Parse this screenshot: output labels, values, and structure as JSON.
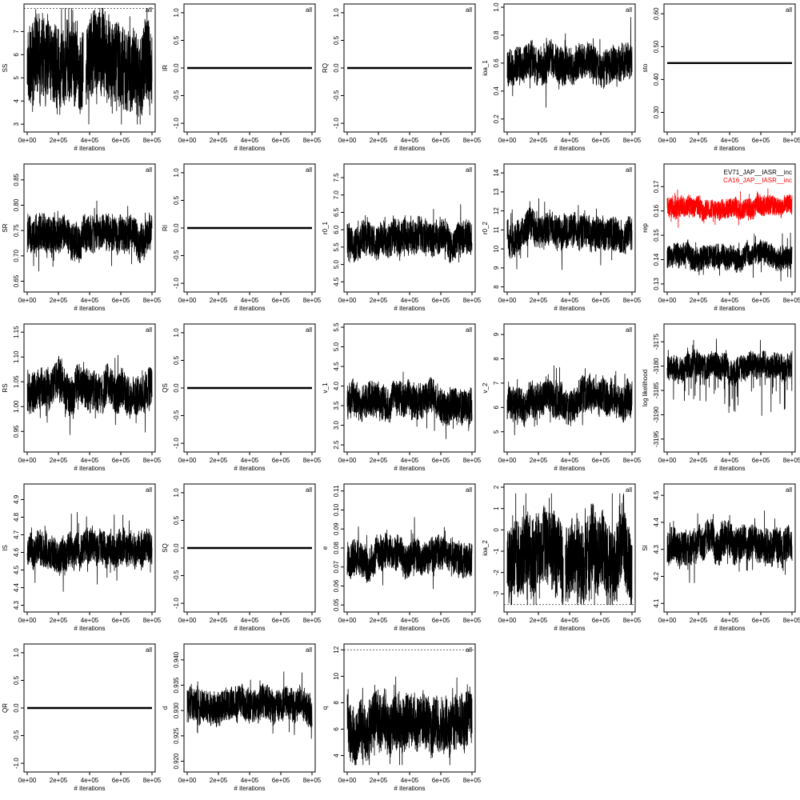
{
  "chart_data": [
    {
      "id": "SS",
      "type": "line",
      "xlabel": "# iterations",
      "ylabel": "SS",
      "tag": "all",
      "xlim": [
        0,
        800000
      ],
      "ylim": [
        2.8,
        8.05
      ],
      "yticks": [
        3,
        4,
        5,
        6,
        7
      ],
      "xticks": [
        0,
        200000,
        400000,
        600000,
        800000
      ],
      "xtick_labels": [
        "0e+00",
        "2e+05",
        "4e+05",
        "6e+05",
        "8e+05"
      ],
      "refline": 8,
      "series": [
        {
          "color": "#000000",
          "level": 5.6,
          "spread": 2.2,
          "band": [
            3.0,
            8.0
          ],
          "seed": 11,
          "gaps": [
            [
              0.45,
              0.47
            ]
          ]
        }
      ]
    },
    {
      "id": "IR",
      "type": "line",
      "xlabel": "# iterations",
      "ylabel": "IR",
      "tag": "all",
      "xlim": [
        0,
        800000
      ],
      "ylim": [
        -1.1,
        1.1
      ],
      "yticks": [
        -1,
        -0.5,
        0,
        0.5,
        1
      ],
      "yticks_text": [
        "-1.0",
        "-0.5",
        "0.0",
        "0.5",
        "1.0"
      ],
      "xticks": [
        0,
        200000,
        400000,
        600000,
        800000
      ],
      "xtick_labels": [
        "0e+00",
        "2e+05",
        "4e+05",
        "6e+05",
        "8e+05"
      ],
      "constant": 0
    },
    {
      "id": "RQ",
      "type": "line",
      "xlabel": "# iterations",
      "ylabel": "RQ",
      "tag": "all",
      "xlim": [
        0,
        800000
      ],
      "ylim": [
        -1.1,
        1.1
      ],
      "yticks": [
        -1,
        -0.5,
        0,
        0.5,
        1
      ],
      "yticks_text": [
        "-1.0",
        "-0.5",
        "0.0",
        "0.5",
        "1.0"
      ],
      "xticks": [
        0,
        200000,
        400000,
        600000,
        800000
      ],
      "xtick_labels": [
        "0e+00",
        "2e+05",
        "4e+05",
        "6e+05",
        "8e+05"
      ],
      "constant": 0
    },
    {
      "id": "ioa_1",
      "type": "line",
      "xlabel": "# iterations",
      "ylabel": "ioa_1",
      "tag": "all",
      "xlim": [
        0,
        800000
      ],
      "ylim": [
        0.13,
        1.0
      ],
      "yticks": [
        0.2,
        0.4,
        0.6,
        0.8,
        1.0
      ],
      "yticks_text": [
        "0.2",
        "0.4",
        "0.6",
        "0.8",
        "1.0"
      ],
      "xticks": [
        0,
        200000,
        400000,
        600000,
        800000
      ],
      "xtick_labels": [
        "0e+00",
        "2e+05",
        "4e+05",
        "6e+05",
        "8e+05"
      ],
      "series": [
        {
          "color": "#000000",
          "level": 0.58,
          "spread": 0.16,
          "band": [
            0.15,
            0.97
          ],
          "seed": 21
        }
      ]
    },
    {
      "id": "sto",
      "type": "line",
      "xlabel": "# iterations",
      "ylabel": "sto",
      "tag": "all",
      "xlim": [
        0,
        800000
      ],
      "ylim": [
        0.25,
        0.62
      ],
      "yticks": [
        0.3,
        0.4,
        0.5,
        0.6
      ],
      "yticks_text": [
        "0.30",
        "0.40",
        "0.50",
        "0.60"
      ],
      "xticks": [
        0,
        200000,
        400000,
        600000,
        800000
      ],
      "xtick_labels": [
        "0e+00",
        "2e+05",
        "4e+05",
        "6e+05",
        "8e+05"
      ],
      "constant": 0.45
    },
    {
      "id": "SR",
      "type": "line",
      "xlabel": "# iterations",
      "ylabel": "SR",
      "tag": "all",
      "xlim": [
        0,
        800000
      ],
      "ylim": [
        0.635,
        0.875
      ],
      "yticks": [
        0.65,
        0.7,
        0.75,
        0.8,
        0.85
      ],
      "yticks_text": [
        "0.65",
        "0.70",
        "0.75",
        "0.80",
        "0.85"
      ],
      "xticks": [
        0,
        200000,
        400000,
        600000,
        800000
      ],
      "xtick_labels": [
        "0e+00",
        "2e+05",
        "4e+05",
        "6e+05",
        "8e+05"
      ],
      "series": [
        {
          "color": "#000000",
          "level": 0.74,
          "spread": 0.045,
          "band": [
            0.64,
            0.87
          ],
          "seed": 31
        }
      ]
    },
    {
      "id": "RI",
      "type": "line",
      "xlabel": "# iterations",
      "ylabel": "RI",
      "tag": "all",
      "xlim": [
        0,
        800000
      ],
      "ylim": [
        -1.1,
        1.1
      ],
      "yticks": [
        -1,
        -0.5,
        0,
        0.5,
        1
      ],
      "yticks_text": [
        "-1.0",
        "-0.5",
        "0.0",
        "0.5",
        "1.0"
      ],
      "xticks": [
        0,
        200000,
        400000,
        600000,
        800000
      ],
      "xtick_labels": [
        "0e+00",
        "2e+05",
        "4e+05",
        "6e+05",
        "8e+05"
      ],
      "constant": 0
    },
    {
      "id": "r0_1",
      "type": "line",
      "xlabel": "# iterations",
      "ylabel": "r0_1",
      "tag": "all",
      "xlim": [
        0,
        800000
      ],
      "ylim": [
        4.3,
        7.8
      ],
      "yticks": [
        4.5,
        5.0,
        5.5,
        6.0,
        6.5,
        7.0,
        7.5
      ],
      "yticks_text": [
        "4.5",
        "5.0",
        "5.5",
        "6.0",
        "6.5",
        "7.0",
        "7.5"
      ],
      "xticks": [
        0,
        200000,
        400000,
        600000,
        800000
      ],
      "xtick_labels": [
        "0e+00",
        "2e+05",
        "4e+05",
        "6e+05",
        "8e+05"
      ],
      "series": [
        {
          "color": "#000000",
          "level": 5.7,
          "spread": 0.6,
          "band": [
            4.4,
            7.7
          ],
          "seed": 41
        }
      ]
    },
    {
      "id": "r0_2",
      "type": "line",
      "xlabel": "# iterations",
      "ylabel": "r0_2",
      "tag": "all",
      "xlim": [
        0,
        800000
      ],
      "ylim": [
        7.9,
        14.3
      ],
      "yticks": [
        8,
        9,
        10,
        11,
        12,
        13,
        14
      ],
      "yticks_text": [
        "8",
        "9",
        "10",
        "11",
        "12",
        "13",
        "14"
      ],
      "xticks": [
        0,
        200000,
        400000,
        600000,
        800000
      ],
      "xtick_labels": [
        "0e+00",
        "2e+05",
        "4e+05",
        "6e+05",
        "8e+05"
      ],
      "series": [
        {
          "color": "#000000",
          "level": 10.8,
          "spread": 1.1,
          "band": [
            8.2,
            14.1
          ],
          "seed": 51
        }
      ]
    },
    {
      "id": "rep",
      "type": "line",
      "xlabel": "# iterations",
      "ylabel": "rep",
      "xlim": [
        0,
        800000
      ],
      "ylim": [
        0.128,
        0.178
      ],
      "yticks": [
        0.13,
        0.14,
        0.15,
        0.16,
        0.17
      ],
      "yticks_text": [
        "0.13",
        "0.14",
        "0.15",
        "0.16",
        "0.17"
      ],
      "xticks": [
        0,
        200000,
        400000,
        600000,
        800000
      ],
      "xtick_labels": [
        "0e+00",
        "2e+05",
        "4e+05",
        "6e+05",
        "8e+05"
      ],
      "legend": {
        "position": "top-right",
        "entries": [
          {
            "label": "EV71_JAP__IASR__inc",
            "color": "#000000"
          },
          {
            "label": "CA16_JAP__IASR__inc",
            "color": "#ff0000"
          }
        ]
      },
      "series": [
        {
          "name": "EV71_JAP__IASR__inc",
          "color": "#000000",
          "level": 0.141,
          "spread": 0.006,
          "band": [
            0.131,
            0.158
          ],
          "seed": 61
        },
        {
          "name": "CA16_JAP__IASR__inc",
          "color": "#ff0000",
          "level": 0.162,
          "spread": 0.005,
          "band": [
            0.152,
            0.174
          ],
          "seed": 62
        }
      ]
    },
    {
      "id": "RS",
      "type": "line",
      "xlabel": "# iterations",
      "ylabel": "RS",
      "tag": "all",
      "xlim": [
        0,
        800000
      ],
      "ylim": [
        0.915,
        1.16
      ],
      "yticks": [
        0.95,
        1.0,
        1.05,
        1.1,
        1.15
      ],
      "yticks_text": [
        "0.95",
        "1.00",
        "1.05",
        "1.10",
        "1.15"
      ],
      "xticks": [
        0,
        200000,
        400000,
        600000,
        800000
      ],
      "xtick_labels": [
        "0e+00",
        "2e+05",
        "4e+05",
        "6e+05",
        "8e+05"
      ],
      "series": [
        {
          "color": "#000000",
          "level": 1.03,
          "spread": 0.05,
          "band": [
            0.92,
            1.155
          ],
          "seed": 71
        }
      ]
    },
    {
      "id": "QS",
      "type": "line",
      "xlabel": "# iterations",
      "ylabel": "QS",
      "tag": "all",
      "xlim": [
        0,
        800000
      ],
      "ylim": [
        -1.1,
        1.1
      ],
      "yticks": [
        -1,
        -0.5,
        0,
        0.5,
        1
      ],
      "yticks_text": [
        "-1.0",
        "-0.5",
        "0.0",
        "0.5",
        "1.0"
      ],
      "xticks": [
        0,
        200000,
        400000,
        600000,
        800000
      ],
      "xtick_labels": [
        "0e+00",
        "2e+05",
        "4e+05",
        "6e+05",
        "8e+05"
      ],
      "constant": 0
    },
    {
      "id": "v_1",
      "type": "line",
      "xlabel": "# iterations",
      "ylabel": "v_1",
      "tag": "all",
      "xlim": [
        0,
        800000
      ],
      "ylim": [
        2.4,
        5.5
      ],
      "yticks": [
        2.5,
        3.0,
        3.5,
        4.0,
        4.5,
        5.0,
        5.5
      ],
      "yticks_text": [
        "2.5",
        "3.0",
        "3.5",
        "4.0",
        "4.5",
        "5.0",
        "5.5"
      ],
      "xticks": [
        0,
        200000,
        400000,
        600000,
        800000
      ],
      "xtick_labels": [
        "0e+00",
        "2e+05",
        "4e+05",
        "6e+05",
        "8e+05"
      ],
      "series": [
        {
          "color": "#000000",
          "level": 3.6,
          "spread": 0.55,
          "band": [
            2.6,
            5.4
          ],
          "seed": 81
        }
      ]
    },
    {
      "id": "v_2",
      "type": "line",
      "xlabel": "# iterations",
      "ylabel": "v_2",
      "tag": "all",
      "xlim": [
        0,
        800000
      ],
      "ylim": [
        4.3,
        9.3
      ],
      "yticks": [
        5,
        6,
        7,
        8,
        9
      ],
      "yticks_text": [
        "5",
        "6",
        "7",
        "8",
        "9"
      ],
      "xticks": [
        0,
        200000,
        400000,
        600000,
        800000
      ],
      "xtick_labels": [
        "0e+00",
        "2e+05",
        "4e+05",
        "6e+05",
        "8e+05"
      ],
      "series": [
        {
          "color": "#000000",
          "level": 6.3,
          "spread": 0.9,
          "band": [
            4.5,
            9.2
          ],
          "seed": 91
        }
      ]
    },
    {
      "id": "loglik",
      "type": "line",
      "xlabel": "# iterations",
      "ylabel": "log likelihood",
      "xlim": [
        0,
        800000
      ],
      "ylim": [
        -3197,
        -3172
      ],
      "yticks": [
        -3195,
        -3190,
        -3185,
        -3180,
        -3175
      ],
      "yticks_text": [
        "-3195",
        "-3190",
        "-3185",
        "-3180",
        "-3175"
      ],
      "xticks": [
        0,
        200000,
        400000,
        600000,
        800000
      ],
      "xtick_labels": [
        "0e+00",
        "2e+05",
        "4e+05",
        "6e+05",
        "8e+05"
      ],
      "series": [
        {
          "color": "#000000",
          "level": -3180,
          "spread": 3.2,
          "band": [
            -3196,
            -3173
          ],
          "seed": 101,
          "skew": "low"
        }
      ]
    },
    {
      "id": "IS",
      "type": "line",
      "xlabel": "# iterations",
      "ylabel": "IS",
      "tag": "all",
      "xlim": [
        0,
        800000
      ],
      "ylim": [
        4.28,
        4.97
      ],
      "yticks": [
        4.3,
        4.4,
        4.5,
        4.6,
        4.7,
        4.8,
        4.9
      ],
      "yticks_text": [
        "4.3",
        "4.4",
        "4.5",
        "4.6",
        "4.7",
        "4.8",
        "4.9"
      ],
      "xticks": [
        0,
        200000,
        400000,
        600000,
        800000
      ],
      "xtick_labels": [
        "0e+00",
        "2e+05",
        "4e+05",
        "6e+05",
        "8e+05"
      ],
      "series": [
        {
          "color": "#000000",
          "level": 4.62,
          "spread": 0.12,
          "band": [
            4.3,
            4.95
          ],
          "seed": 111
        }
      ]
    },
    {
      "id": "SQ",
      "type": "line",
      "xlabel": "# iterations",
      "ylabel": "SQ",
      "tag": "all",
      "xlim": [
        0,
        800000
      ],
      "ylim": [
        -1.1,
        1.1
      ],
      "yticks": [
        -1,
        -0.5,
        0,
        0.5,
        1
      ],
      "yticks_text": [
        "-1.0",
        "-0.5",
        "0.0",
        "0.5",
        "1.0"
      ],
      "xticks": [
        0,
        200000,
        400000,
        600000,
        800000
      ],
      "xtick_labels": [
        "0e+00",
        "2e+05",
        "4e+05",
        "6e+05",
        "8e+05"
      ],
      "constant": 0
    },
    {
      "id": "e",
      "type": "line",
      "xlabel": "# iterations",
      "ylabel": "e",
      "tag": "all",
      "xlim": [
        0,
        800000
      ],
      "ylim": [
        0.048,
        0.112
      ],
      "yticks": [
        0.05,
        0.06,
        0.07,
        0.08,
        0.09,
        0.1,
        0.11
      ],
      "yticks_text": [
        "0.05",
        "0.06",
        "0.07",
        "0.08",
        "0.09",
        "0.10",
        "0.11"
      ],
      "xticks": [
        0,
        200000,
        400000,
        600000,
        800000
      ],
      "xtick_labels": [
        "0e+00",
        "2e+05",
        "4e+05",
        "6e+05",
        "8e+05"
      ],
      "series": [
        {
          "color": "#000000",
          "level": 0.075,
          "spread": 0.011,
          "band": [
            0.052,
            0.11
          ],
          "seed": 121
        }
      ]
    },
    {
      "id": "ioa_2",
      "type": "line",
      "xlabel": "# iterations",
      "ylabel": "ioa_2",
      "tag": "all",
      "xlim": [
        0,
        800000
      ],
      "ylim": [
        -3.7,
        2.0
      ],
      "yticks": [
        -3,
        -2,
        -1,
        0,
        1,
        2
      ],
      "yticks_text": [
        "-3",
        "-2",
        "-1",
        "0",
        "1",
        "2"
      ],
      "xticks": [
        0,
        200000,
        400000,
        600000,
        800000
      ],
      "xtick_labels": [
        "0e+00",
        "2e+05",
        "4e+05",
        "6e+05",
        "8e+05"
      ],
      "refline": -3.5,
      "series": [
        {
          "color": "#000000",
          "level": -1.2,
          "spread": 2.3,
          "band": [
            -3.5,
            1.7
          ],
          "seed": 131,
          "gaps": [
            [
              0.45,
              0.465
            ]
          ]
        }
      ]
    },
    {
      "id": "SI",
      "type": "line",
      "xlabel": "# iterations",
      "ylabel": "SI",
      "tag": "all",
      "xlim": [
        0,
        800000
      ],
      "ylim": [
        4.08,
        4.53
      ],
      "yticks": [
        4.1,
        4.2,
        4.3,
        4.4,
        4.5
      ],
      "yticks_text": [
        "4.1",
        "4.2",
        "4.3",
        "4.4",
        "4.5"
      ],
      "xticks": [
        0,
        200000,
        400000,
        600000,
        800000
      ],
      "xtick_labels": [
        "0e+00",
        "2e+05",
        "4e+05",
        "6e+05",
        "8e+05"
      ],
      "series": [
        {
          "color": "#000000",
          "level": 4.31,
          "spread": 0.08,
          "band": [
            4.1,
            4.51
          ],
          "seed": 141
        }
      ]
    },
    {
      "id": "QR",
      "type": "line",
      "xlabel": "# iterations",
      "ylabel": "QR",
      "tag": "all",
      "xlim": [
        0,
        800000
      ],
      "ylim": [
        -1.1,
        1.1
      ],
      "yticks": [
        -1,
        -0.5,
        0,
        0.5,
        1
      ],
      "yticks_text": [
        "-1.0",
        "-0.5",
        "0.0",
        "0.5",
        "1.0"
      ],
      "xticks": [
        0,
        200000,
        400000,
        600000,
        800000
      ],
      "xtick_labels": [
        "0e+00",
        "2e+05",
        "4e+05",
        "6e+05",
        "8e+05"
      ],
      "constant": 0
    },
    {
      "id": "d",
      "type": "line",
      "xlabel": "# iterations",
      "ylabel": "d",
      "tag": "all",
      "xlim": [
        0,
        800000
      ],
      "ylim": [
        0.9185,
        0.9425
      ],
      "yticks": [
        0.92,
        0.925,
        0.93,
        0.935,
        0.94
      ],
      "yticks_text": [
        "0.920",
        "0.925",
        "0.930",
        "0.935",
        "0.940"
      ],
      "xticks": [
        0,
        200000,
        400000,
        600000,
        800000
      ],
      "xtick_labels": [
        "0e+00",
        "2e+05",
        "4e+05",
        "6e+05",
        "8e+05"
      ],
      "series": [
        {
          "color": "#000000",
          "level": 0.931,
          "spread": 0.004,
          "band": [
            0.922,
            0.941
          ],
          "seed": 151
        }
      ]
    },
    {
      "id": "q",
      "type": "line",
      "xlabel": "# iterations",
      "ylabel": "q",
      "tag": "all",
      "xlim": [
        0,
        800000
      ],
      "ylim": [
        3.0,
        12.2
      ],
      "yticks": [
        4,
        6,
        8,
        10,
        12
      ],
      "yticks_text": [
        "4",
        "6",
        "8",
        "10",
        "12"
      ],
      "xticks": [
        0,
        200000,
        400000,
        600000,
        800000
      ],
      "xtick_labels": [
        "0e+00",
        "2e+05",
        "4e+05",
        "6e+05",
        "8e+05"
      ],
      "refline": 12,
      "series": [
        {
          "color": "#000000",
          "level": 6.5,
          "spread": 2.6,
          "band": [
            3.3,
            11.9
          ],
          "seed": 161
        }
      ]
    }
  ]
}
